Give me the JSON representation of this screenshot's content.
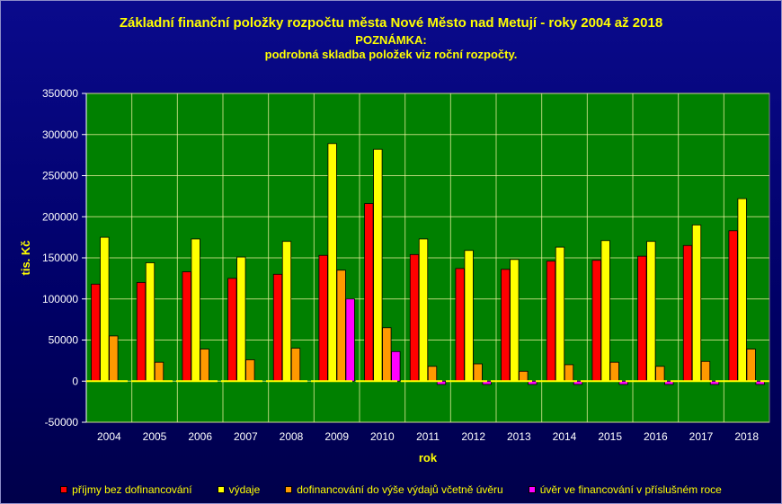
{
  "header": {
    "title": "Základní finanční položky rozpočtu města Nové Město nad Metují - roky 2004 až 2018",
    "subtitle1": "POZNÁMKA:",
    "subtitle2": "podrobná skladba položek viz roční rozpočty."
  },
  "colors": {
    "plot_bg": "#008000",
    "gridline": "#f2f2a0",
    "series": [
      "#ff0000",
      "#ffff00",
      "#ff9900",
      "#ff00ff"
    ]
  },
  "chart_data": {
    "type": "bar",
    "xlabel": "rok",
    "ylabel": "tis. Kč",
    "ylim": [
      -50000,
      350000
    ],
    "yticks": [
      -50000,
      0,
      50000,
      100000,
      150000,
      200000,
      250000,
      300000,
      350000
    ],
    "grid": true,
    "legend_position": "bottom",
    "categories": [
      "2004",
      "2005",
      "2006",
      "2007",
      "2008",
      "2009",
      "2010",
      "2011",
      "2012",
      "2013",
      "2014",
      "2015",
      "2016",
      "2017",
      "2018"
    ],
    "series": [
      {
        "name": "příjmy bez dofinancování",
        "values": [
          118000,
          120000,
          133000,
          125000,
          130000,
          153000,
          216000,
          154000,
          137000,
          136000,
          146000,
          147000,
          152000,
          165000,
          183000
        ]
      },
      {
        "name": "výdaje",
        "values": [
          175000,
          144000,
          173000,
          151000,
          170000,
          289000,
          282000,
          173000,
          159000,
          148000,
          163000,
          171000,
          170000,
          190000,
          222000
        ]
      },
      {
        "name": "dofinancování do výše výdajů včetně úvěru",
        "values": [
          55000,
          23000,
          39000,
          26000,
          40000,
          135000,
          65000,
          18000,
          21000,
          12000,
          20000,
          23000,
          18000,
          24000,
          39000
        ]
      },
      {
        "name": "úvěr ve financování v příslušném roce",
        "values": [
          0,
          0,
          0,
          0,
          0,
          100000,
          36000,
          -4000,
          -4000,
          -4000,
          -4000,
          -4000,
          -4000,
          -4000,
          -4000
        ]
      }
    ]
  }
}
